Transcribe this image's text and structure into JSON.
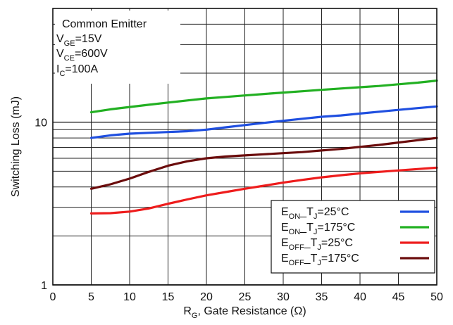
{
  "chart_data": {
    "type": "line",
    "xlabel": {
      "main": "R",
      "sub": "G",
      "rest": ", Gate Resistance (Ω)"
    },
    "ylabel": "Switching Loss (mJ)",
    "xlim": [
      0,
      50
    ],
    "ylim": [
      1,
      50
    ],
    "yscale": "log",
    "grid": true,
    "legend_position": "bottom-right",
    "x_ticks": [
      "0",
      "5",
      "10",
      "15",
      "20",
      "25",
      "30",
      "35",
      "40",
      "45",
      "50"
    ],
    "y_ticks": [
      "1",
      "10"
    ],
    "conditions": [
      {
        "main": "Common Emitter",
        "sub": "",
        "rest": ""
      },
      {
        "main": "V",
        "sub": "GE",
        "rest": "=15V"
      },
      {
        "main": "V",
        "sub": "CE",
        "rest": "=600V"
      },
      {
        "main": "I",
        "sub": "C",
        "rest": "=100A"
      }
    ],
    "series": [
      {
        "name": "E_ON_T_J=25°C",
        "legend": {
          "main": "E",
          "sub": "ON",
          "mid": "_T",
          "sub2": "J",
          "rest": "=25°C"
        },
        "color": "#1f4fe0",
        "x": [
          5,
          7.5,
          10,
          12.5,
          15,
          17.5,
          20,
          22.5,
          25,
          27.5,
          30,
          32.5,
          35,
          37.5,
          40,
          42.5,
          45,
          47.5,
          50
        ],
        "y": [
          8.0,
          8.3,
          8.5,
          8.6,
          8.7,
          8.8,
          9.0,
          9.3,
          9.6,
          9.9,
          10.2,
          10.5,
          10.8,
          11.0,
          11.3,
          11.6,
          11.9,
          12.2,
          12.5
        ]
      },
      {
        "name": "E_ON_T_J=175°C",
        "legend": {
          "main": "E",
          "sub": "ON",
          "mid": "_T",
          "sub2": "J",
          "rest": "=175°C"
        },
        "color": "#22b022",
        "x": [
          5,
          7.5,
          10,
          12.5,
          15,
          17.5,
          20,
          22.5,
          25,
          27.5,
          30,
          32.5,
          35,
          37.5,
          40,
          42.5,
          45,
          47.5,
          50
        ],
        "y": [
          11.5,
          12.0,
          12.4,
          12.8,
          13.2,
          13.6,
          14.0,
          14.3,
          14.6,
          14.9,
          15.2,
          15.5,
          15.8,
          16.1,
          16.4,
          16.7,
          17.1,
          17.5,
          18.0
        ]
      },
      {
        "name": "E_OFF_T_J=25°C",
        "legend": {
          "main": "E",
          "sub": "OFF",
          "mid": "_T",
          "sub2": "J",
          "rest": "=25°C"
        },
        "color": "#ee1c1c",
        "x": [
          5,
          7.5,
          10,
          12.5,
          15,
          17.5,
          20,
          22.5,
          25,
          27.5,
          30,
          32.5,
          35,
          37.5,
          40,
          42.5,
          45,
          47.5,
          50
        ],
        "y": [
          2.75,
          2.76,
          2.82,
          2.95,
          3.15,
          3.35,
          3.55,
          3.72,
          3.9,
          4.07,
          4.25,
          4.42,
          4.58,
          4.72,
          4.85,
          4.95,
          5.05,
          5.15,
          5.25
        ]
      },
      {
        "name": "E_OFF_T_J=175°C",
        "legend": {
          "main": "E",
          "sub": "OFF",
          "mid": "_T",
          "sub2": "J",
          "rest": "=175°C"
        },
        "color": "#6b0c0c",
        "x": [
          5,
          7.5,
          10,
          12.5,
          15,
          17.5,
          20,
          22.5,
          25,
          27.5,
          30,
          32.5,
          35,
          37.5,
          40,
          42.5,
          45,
          47.5,
          50
        ],
        "y": [
          3.9,
          4.15,
          4.5,
          4.95,
          5.4,
          5.75,
          6.0,
          6.15,
          6.25,
          6.35,
          6.45,
          6.55,
          6.7,
          6.85,
          7.05,
          7.25,
          7.5,
          7.75,
          8.0
        ]
      }
    ]
  }
}
